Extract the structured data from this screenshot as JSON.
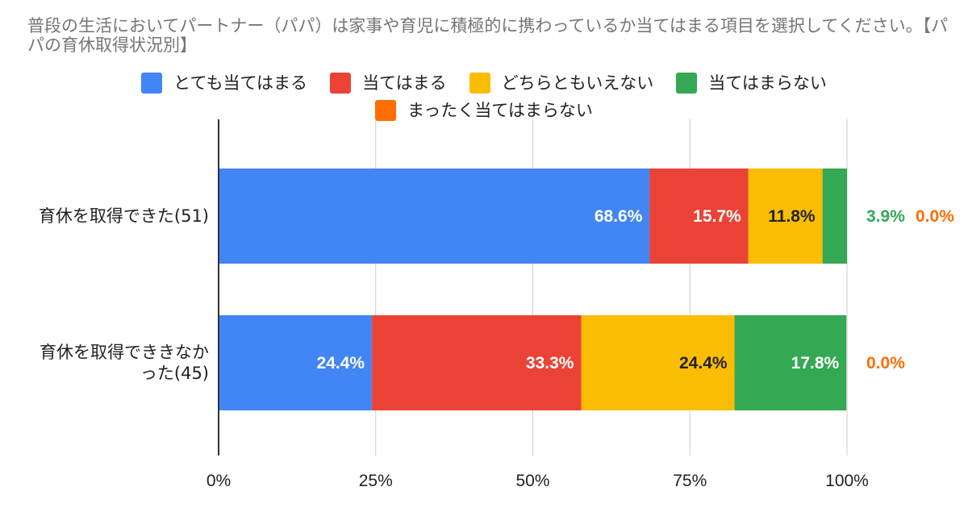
{
  "chart_data": {
    "type": "bar",
    "orientation": "horizontal",
    "stacked": "percent",
    "title": "普段の生活においてパートナー（パパ）は家事や育児に積極的に携わっているか当てはまる項目を選択してください。【パパの育休取得状況別】",
    "categories": [
      [
        "育休を取得できた(51)"
      ],
      [
        "育休を取得でききなか",
        "った(45)"
      ]
    ],
    "series": [
      {
        "name": "とても当てはまる",
        "color": "#4285f4",
        "label_color": "#ffffff",
        "values": [
          68.6,
          24.4
        ]
      },
      {
        "name": "当てはまる",
        "color": "#ea4335",
        "label_color": "#ffffff",
        "values": [
          15.7,
          33.3
        ]
      },
      {
        "name": "どちらともいえない",
        "color": "#fbbc04",
        "label_color": "#222222",
        "values": [
          11.8,
          24.4
        ]
      },
      {
        "name": "当てはまらない",
        "color": "#34a853",
        "label_color": "#ffffff",
        "outside_color": "#34a853",
        "values": [
          3.9,
          17.8
        ]
      },
      {
        "name": "まったく当てはまらない",
        "color": "#ff6d01",
        "label_color": "#ffffff",
        "outside_color": "#ff6d01",
        "values": [
          0.0,
          0.0
        ]
      }
    ],
    "data_labels": [
      [
        "68.6%",
        "15.7%",
        "11.8%",
        "3.9%",
        "0.0%"
      ],
      [
        "24.4%",
        "33.3%",
        "24.4%",
        "17.8%",
        "0.0%"
      ]
    ],
    "x_ticks": [
      "0%",
      "25%",
      "50%",
      "75%",
      "100%"
    ],
    "xlim": [
      0,
      100
    ],
    "grid": true,
    "legend_position": "top"
  }
}
